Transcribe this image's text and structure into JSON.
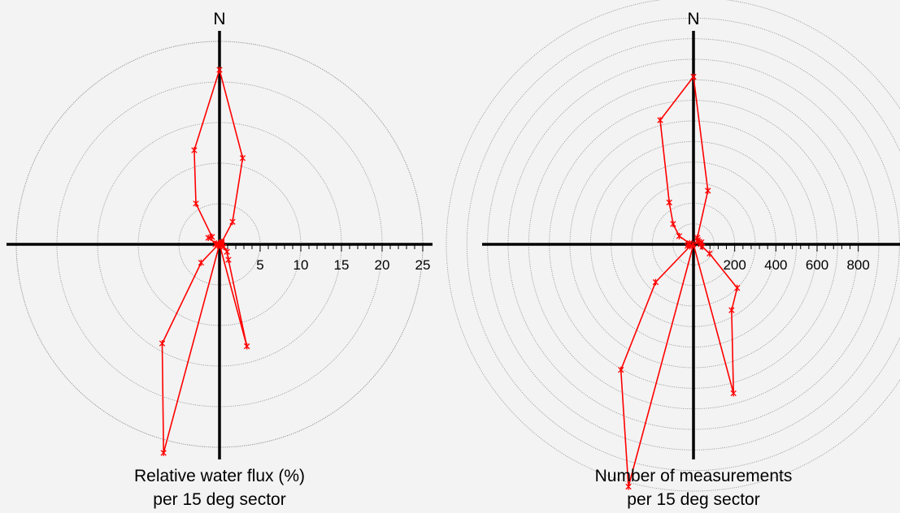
{
  "colors": {
    "series": "#ff0000",
    "axis": "#000000",
    "rings": "#9a9a9a",
    "background": "#f3f3f3"
  },
  "chart_data": [
    {
      "type": "polar-line",
      "north_label": "N",
      "caption_lines": [
        "Relative water flux (%)",
        "per 15 deg sector"
      ],
      "r_ticks": [
        5,
        10,
        15,
        20,
        25
      ],
      "r_labels": [
        "5",
        "10",
        "15",
        "20",
        "25"
      ],
      "rings": [
        5,
        10,
        15,
        20,
        25
      ],
      "rmax": 25,
      "grid": true,
      "sector_deg": 15,
      "bearings_deg": [
        0,
        15,
        30,
        45,
        60,
        75,
        90,
        105,
        120,
        135,
        150,
        165,
        180,
        195,
        210,
        225,
        240,
        255,
        270,
        285,
        300,
        315,
        330,
        345,
        0
      ],
      "values": [
        21.5,
        11.0,
        3.2,
        0.4,
        0.3,
        0.2,
        0.3,
        0.3,
        0.6,
        1.3,
        2.2,
        13.0,
        0.0,
        26.6,
        14.1,
        3.2,
        0.3,
        0.2,
        0.5,
        0.4,
        1.6,
        1.3,
        5.8,
        12.0,
        21.5
      ]
    },
    {
      "type": "polar-line",
      "north_label": "N",
      "caption_lines": [
        "Number of measurements",
        "per 15 deg sector"
      ],
      "r_ticks": [
        200,
        400,
        600,
        800
      ],
      "r_labels": [
        "200",
        "400",
        "600",
        "800"
      ],
      "rings": [
        100,
        200,
        300,
        400,
        500,
        600,
        700,
        800,
        900,
        1000,
        1100
      ],
      "rmax": 1200,
      "grid": true,
      "sector_deg": 15,
      "bearings_deg": [
        0,
        15,
        30,
        45,
        60,
        75,
        90,
        105,
        120,
        135,
        150,
        165,
        180,
        195,
        210,
        225,
        240,
        255,
        270,
        285,
        300,
        315,
        330,
        345,
        0
      ],
      "values": [
        815,
        270,
        37,
        30,
        25,
        40,
        35,
        45,
        90,
        300,
        370,
        750,
        0,
        1220,
        705,
        260,
        20,
        30,
        25,
        20,
        80,
        140,
        235,
        625,
        815
      ]
    }
  ]
}
